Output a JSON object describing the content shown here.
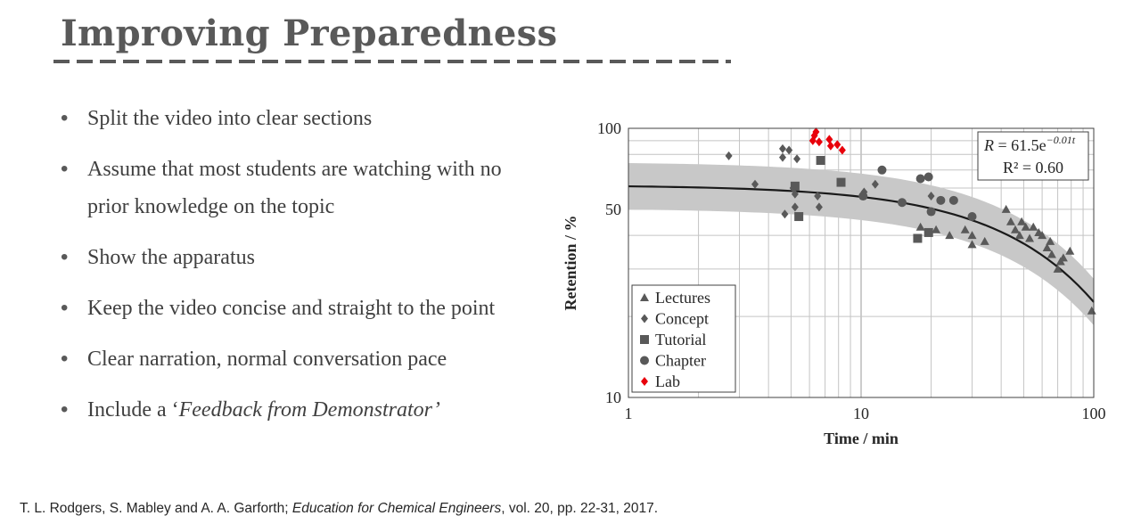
{
  "slide": {
    "title": "Improving Preparedness",
    "bullets": [
      "Split the video into clear sections",
      "Assume that most students are watching with no prior knowledge on the topic",
      "Show the apparatus",
      "Keep the video concise and straight to the point",
      "Clear narration, normal conversation pace",
      "Include a ‘"
    ],
    "bullet_last_emphasis": "Feedback from Demonstrator’",
    "citation_authors": "T. L. Rodgers, S. Mabley and A. A. Garforth; ",
    "citation_journal": "Education for Chemical Engineers",
    "citation_rest": ", vol. 20, pp. 22-31, 2017."
  },
  "colors": {
    "title": "#595959",
    "text": "#404040",
    "series_gray": "#595959",
    "lab_red": "#e8000b",
    "band": "#c8c8c8"
  },
  "chart_data": {
    "type": "scatter",
    "xlabel": "Time / min",
    "ylabel": "Retention / %",
    "xscale": "log",
    "yscale": "log",
    "xlim": [
      1,
      100
    ],
    "ylim": [
      10,
      100
    ],
    "xticks": [
      "1",
      "10",
      "100"
    ],
    "yticks": [
      "100",
      "50",
      "10"
    ],
    "grid": true,
    "legend_position": "bottom-left",
    "fit": {
      "formula_lhs": "R",
      "formula_rhs": " = 61.5e",
      "formula_exp": "−0.01t",
      "r2": "R² = 0.60",
      "a": 61.5,
      "k": 0.01
    },
    "series": [
      {
        "name": "Lectures",
        "marker": "triangle",
        "color": "#595959",
        "points": [
          [
            18,
            43
          ],
          [
            21,
            42
          ],
          [
            24,
            40
          ],
          [
            28,
            42
          ],
          [
            30,
            40
          ],
          [
            30,
            37
          ],
          [
            34,
            38
          ],
          [
            42,
            50
          ],
          [
            44,
            45
          ],
          [
            46,
            42
          ],
          [
            48,
            40
          ],
          [
            49,
            45
          ],
          [
            51,
            43
          ],
          [
            53,
            39
          ],
          [
            55,
            43
          ],
          [
            58,
            41
          ],
          [
            60,
            40
          ],
          [
            63,
            36
          ],
          [
            65,
            38
          ],
          [
            66,
            34
          ],
          [
            70,
            30
          ],
          [
            72,
            32
          ],
          [
            74,
            33
          ],
          [
            79,
            35
          ],
          [
            98,
            21
          ]
        ]
      },
      {
        "name": "Concept",
        "marker": "diamond",
        "color": "#595959",
        "points": [
          [
            2.7,
            79
          ],
          [
            3.5,
            62
          ],
          [
            4.6,
            84
          ],
          [
            4.6,
            78
          ],
          [
            4.7,
            48
          ],
          [
            4.9,
            83
          ],
          [
            5.1,
            60
          ],
          [
            5.2,
            57
          ],
          [
            5.2,
            51
          ],
          [
            5.3,
            77
          ],
          [
            6.5,
            56
          ],
          [
            6.6,
            51
          ],
          [
            10.3,
            58
          ],
          [
            11.5,
            62
          ],
          [
            20,
            56
          ]
        ]
      },
      {
        "name": "Tutorial",
        "marker": "square",
        "color": "#595959",
        "points": [
          [
            5.2,
            61
          ],
          [
            5.4,
            47
          ],
          [
            6.7,
            76
          ],
          [
            8.2,
            63
          ],
          [
            17.5,
            39
          ],
          [
            19.5,
            41
          ]
        ]
      },
      {
        "name": "Chapter",
        "marker": "circle",
        "color": "#595959",
        "points": [
          [
            10.2,
            56
          ],
          [
            12.3,
            70
          ],
          [
            15,
            53
          ],
          [
            18,
            65
          ],
          [
            19.5,
            66
          ],
          [
            20,
            49
          ],
          [
            22,
            54
          ],
          [
            25,
            54
          ],
          [
            30,
            47
          ]
        ]
      },
      {
        "name": "Lab",
        "marker": "diamond",
        "color": "#e8000b",
        "points": [
          [
            6.2,
            90
          ],
          [
            6.3,
            94
          ],
          [
            6.4,
            97
          ],
          [
            6.6,
            89
          ],
          [
            7.3,
            91
          ],
          [
            7.4,
            86
          ],
          [
            7.9,
            87
          ],
          [
            8.3,
            83
          ]
        ]
      }
    ]
  }
}
